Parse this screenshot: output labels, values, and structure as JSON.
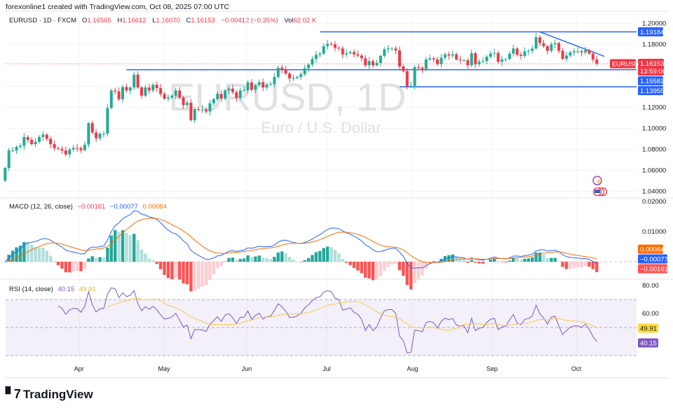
{
  "credit": "forexonline1 created with TradingView.com, Oct 08, 2025 07:00 UTC",
  "legend": {
    "symbol": "EURUSD · 1D · FXCM",
    "o_label": "O",
    "open": "1.16565",
    "h_label": "H",
    "high": "1.16612",
    "l_label": "L",
    "low": "1.16070",
    "c_label": "C",
    "close": "1.16153",
    "change": "−0.00412 (−0.35%)",
    "vol_label": "Vol",
    "volume": "62.02 K"
  },
  "watermark": {
    "title": "EURUSD, 1D",
    "subtitle": "Euro / U.S. Dollar"
  },
  "colors": {
    "up": "#22ab94",
    "down": "#f23645",
    "hline": "#2962ff",
    "macd": "#2962ff",
    "signal": "#ff6d00",
    "rsi": "#7e57c2",
    "rsi_ma": "#f7c948",
    "hist_up": "#26a69a",
    "hist_up_light": "#b2dfdb",
    "hist_down": "#ff5252",
    "hist_down_light": "#ffcdd2"
  },
  "chart_data": [
    {
      "type": "candlestick",
      "title": "EURUSD, 1D",
      "ylim": [
        1.03,
        1.205
      ],
      "y_ticks": [
        "1.20000",
        "1.18000",
        "1.12000",
        "1.10000",
        "1.08000",
        "1.06000",
        "1.04000"
      ],
      "x_ticks": [
        {
          "label": "Apr",
          "bar": 19.5
        },
        {
          "label": "May",
          "bar": 41.9
        },
        {
          "label": "Jun",
          "bar": 63.7
        },
        {
          "label": "Jul",
          "bar": 84.8
        },
        {
          "label": "Aug",
          "bar": 107.4
        },
        {
          "label": "Sep",
          "bar": 128.4
        },
        {
          "label": "Oct",
          "bar": 150.6
        }
      ],
      "first_open": 1.05,
      "closes": [
        1.0622,
        1.0789,
        1.0789,
        1.0822,
        1.0833,
        1.0917,
        1.0889,
        1.0849,
        1.0871,
        1.0917,
        1.094,
        1.09,
        1.0849,
        1.0811,
        1.0804,
        1.0789,
        1.0751,
        1.0798,
        1.0813,
        1.0811,
        1.0791,
        1.0844,
        1.1049,
        1.096,
        1.0904,
        1.0949,
        1.0949,
        1.1193,
        1.136,
        1.1351,
        1.1277,
        1.1393,
        1.136,
        1.1389,
        1.1511,
        1.1389,
        1.1311,
        1.1389,
        1.136,
        1.1415,
        1.1382,
        1.1327,
        1.1282,
        1.1293,
        1.1311,
        1.136,
        1.1293,
        1.1222,
        1.1244,
        1.1077,
        1.1182,
        1.1178,
        1.1178,
        1.116,
        1.1238,
        1.1278,
        1.1327,
        1.1282,
        1.136,
        1.1378,
        1.1344,
        1.1289,
        1.136,
        1.1362,
        1.1437,
        1.1366,
        1.1411,
        1.144,
        1.1389,
        1.1418,
        1.1422,
        1.1489,
        1.1577,
        1.1555,
        1.1522,
        1.1475,
        1.1478,
        1.1489,
        1.1515,
        1.1571,
        1.1607,
        1.166,
        1.17,
        1.1711,
        1.1782,
        1.1804,
        1.18,
        1.1767,
        1.176,
        1.1704,
        1.1715,
        1.1726,
        1.1704,
        1.1693,
        1.1667,
        1.16,
        1.164,
        1.16,
        1.1622,
        1.1689,
        1.1751,
        1.176,
        1.176,
        1.1742,
        1.1589,
        1.1544,
        1.14,
        1.1404,
        1.1582,
        1.1578,
        1.1566,
        1.1656,
        1.1667,
        1.1656,
        1.1611,
        1.1673,
        1.1704,
        1.1693,
        1.1704,
        1.1656,
        1.1649,
        1.1649,
        1.16,
        1.1715,
        1.1611,
        1.1633,
        1.164,
        1.1682,
        1.1711,
        1.1718,
        1.1633,
        1.1656,
        1.166,
        1.1711,
        1.176,
        1.17,
        1.1689,
        1.1733,
        1.1738,
        1.176,
        1.1867,
        1.1811,
        1.1782,
        1.1738,
        1.18,
        1.1811,
        1.1738,
        1.1662,
        1.1693,
        1.1722,
        1.1733,
        1.1733,
        1.1722,
        1.1744,
        1.1711,
        1.1656,
        1.16153
      ],
      "horizontal_lines": [
        {
          "value": 1.19184,
          "label": "1.19184",
          "from_bar": 83
        },
        {
          "value": 1.15581,
          "label": "1.15581",
          "from_bar": 32
        },
        {
          "value": 1.13955,
          "label": "1.13955",
          "from_bar": 104
        }
      ],
      "trend_line": {
        "from": {
          "bar": 141,
          "value": 1.1918
        },
        "to": {
          "bar": 158,
          "value": 1.1685
        }
      },
      "last_price": {
        "symbol": "EURUSD",
        "value": "1.16153",
        "countdown": "13:59:08"
      }
    },
    {
      "type": "line",
      "title": "MACD (12, 26, close)",
      "values_text": {
        "histogram": "−0.00161",
        "macd": "−0.00077",
        "signal": "0.00084"
      },
      "y_ticks": [
        "0.02000",
        "0.01000"
      ],
      "ylim": [
        -0.0026,
        0.021
      ]
    },
    {
      "type": "line",
      "title": "RSI (14, close)",
      "values_text": {
        "rsi": "40.15",
        "rsi_ma": "49.91"
      },
      "y_ticks": [
        "80.00",
        "60.00"
      ],
      "bands": [
        70,
        50,
        30
      ]
    }
  ],
  "brand": "TradingView"
}
